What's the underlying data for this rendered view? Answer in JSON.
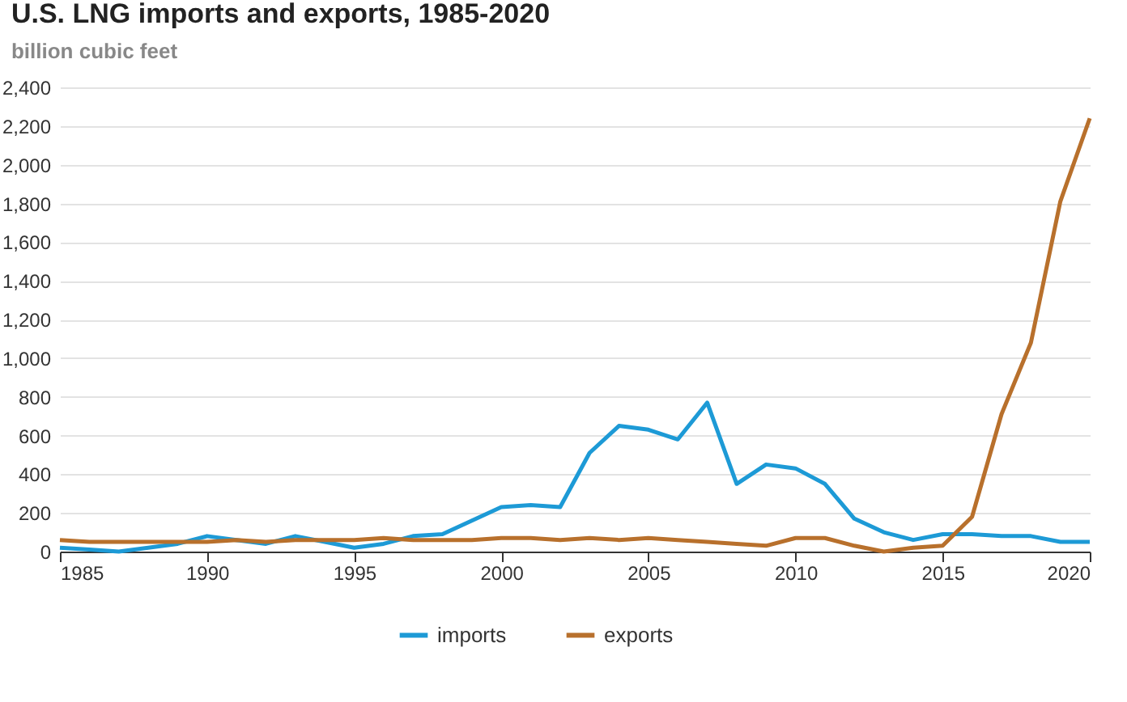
{
  "chart_data": {
    "type": "line",
    "title": "U.S. LNG imports and exports, 1985-2020",
    "ylabel": "billion cubic feet",
    "x": [
      1985,
      1986,
      1987,
      1988,
      1989,
      1990,
      1991,
      1992,
      1993,
      1994,
      1995,
      1996,
      1997,
      1998,
      1999,
      2000,
      2001,
      2002,
      2003,
      2004,
      2005,
      2006,
      2007,
      2008,
      2009,
      2010,
      2011,
      2012,
      2013,
      2014,
      2015,
      2016,
      2017,
      2018,
      2019,
      2020
    ],
    "series": [
      {
        "name": "imports",
        "color": "#1d9ad6",
        "values": [
          20,
          10,
          0,
          20,
          40,
          80,
          60,
          40,
          80,
          50,
          20,
          40,
          80,
          90,
          160,
          230,
          240,
          230,
          510,
          650,
          630,
          580,
          770,
          350,
          450,
          430,
          350,
          170,
          100,
          60,
          90,
          90,
          80,
          80,
          50,
          50
        ]
      },
      {
        "name": "exports",
        "color": "#b8702c",
        "values": [
          60,
          50,
          50,
          50,
          50,
          50,
          60,
          50,
          60,
          60,
          60,
          70,
          60,
          60,
          60,
          70,
          70,
          60,
          70,
          60,
          70,
          60,
          50,
          40,
          30,
          70,
          70,
          30,
          0,
          20,
          30,
          180,
          710,
          1080,
          1810,
          2240
        ]
      }
    ],
    "xlim": [
      1985,
      2020
    ],
    "xticks": [
      1985,
      1990,
      1995,
      2000,
      2005,
      2010,
      2015,
      2020
    ],
    "ylim": [
      0,
      2400
    ],
    "yticks": [
      0,
      200,
      400,
      600,
      800,
      {
        "value": 1000,
        "label": "1,000"
      },
      {
        "value": 1200,
        "label": "1,200"
      },
      {
        "value": 1400,
        "label": "1,400"
      },
      {
        "value": 1600,
        "label": "1,600"
      },
      {
        "value": 1800,
        "label": "1,800"
      },
      {
        "value": 2000,
        "label": "2,000"
      },
      {
        "value": 2200,
        "label": "2,200"
      },
      {
        "value": 2400,
        "label": "2,400"
      }
    ],
    "grid": "y",
    "legend": "bottom",
    "marker": "none",
    "line_style": "solid"
  }
}
